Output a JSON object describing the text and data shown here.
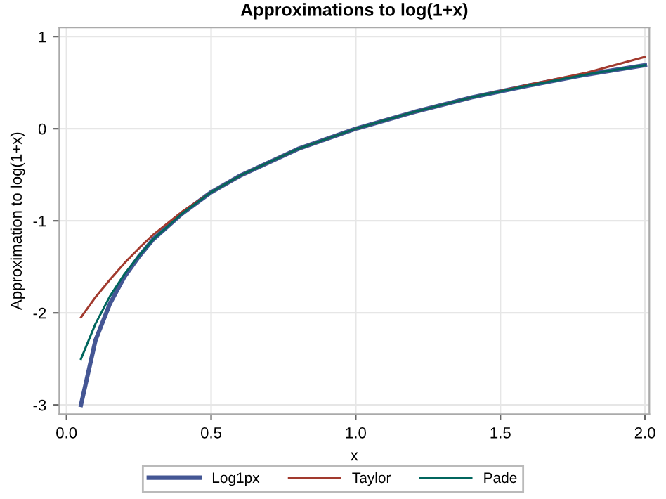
{
  "chart_data": {
    "type": "line",
    "title": "Approximations to log(1+x)",
    "xlabel": "x",
    "ylabel": "Approximation to log(1+x)",
    "x": [
      0.05,
      0.1,
      0.15,
      0.2,
      0.25,
      0.3,
      0.4,
      0.5,
      0.6,
      0.8,
      1.0,
      1.2,
      1.4,
      1.6,
      1.8,
      2.0
    ],
    "series": [
      {
        "name": "Log1px",
        "color": "#445694",
        "values": [
          -3.0,
          -2.3,
          -1.9,
          -1.61,
          -1.39,
          -1.2,
          -0.92,
          -0.69,
          -0.51,
          -0.22,
          0,
          0.18,
          0.34,
          0.47,
          0.59,
          0.69
        ]
      },
      {
        "name": "Taylor",
        "color": "#a23a2e",
        "values": [
          -2.05,
          -1.83,
          -1.64,
          -1.46,
          -1.3,
          -1.15,
          -0.9,
          -0.69,
          -0.51,
          -0.22,
          0,
          0.18,
          0.34,
          0.48,
          0.61,
          0.78
        ]
      },
      {
        "name": "Pade",
        "color": "#01665e",
        "values": [
          -2.5,
          -2.12,
          -1.82,
          -1.58,
          -1.38,
          -1.2,
          -0.92,
          -0.69,
          -0.51,
          -0.22,
          0,
          0.18,
          0.34,
          0.47,
          0.59,
          0.69
        ]
      }
    ],
    "xlim": [
      -0.025,
      2.015
    ],
    "ylim": [
      -3.1,
      1.1
    ],
    "xticks": [
      {
        "value": 0,
        "label": "0.0"
      },
      0.5,
      {
        "value": 1,
        "label": "1.0"
      },
      1.5,
      {
        "value": 2,
        "label": "2.0"
      }
    ],
    "yticks": [
      -3,
      -2,
      -1,
      0,
      1
    ],
    "grid": true,
    "legend": "bottom",
    "marker": "none",
    "line_style": "solid"
  }
}
